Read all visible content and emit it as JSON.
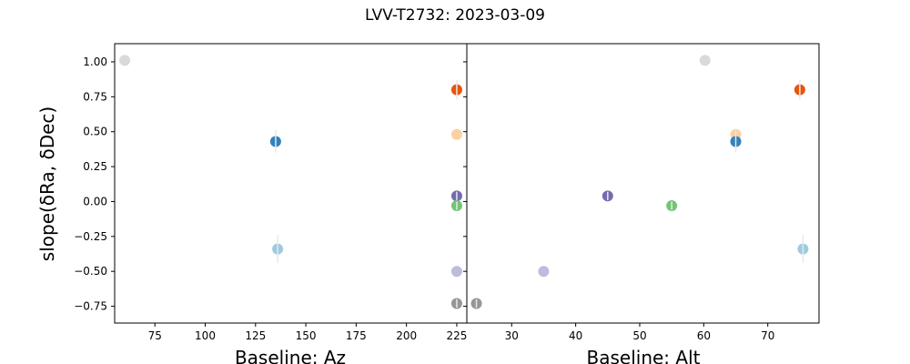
{
  "chart_data": {
    "type": "scatter",
    "title": "LVV-T2732: 2023-03-09",
    "ylabel": "slope(δRa, δDec)",
    "ylim": [
      -0.87,
      1.13
    ],
    "yticks": [
      1.0,
      0.75,
      0.5,
      0.25,
      0.0,
      -0.25,
      -0.5,
      -0.75
    ],
    "ytick_labels": [
      "1.00",
      "0.75",
      "0.50",
      "0.25",
      "0.00",
      "−0.25",
      "−0.50",
      "−0.75"
    ],
    "grid": false,
    "shared_y": true,
    "panels": [
      {
        "id": "az",
        "xlabel": "Baseline: Az",
        "xlim": [
          55,
          230
        ],
        "xticks": [
          75,
          100,
          125,
          150,
          175,
          200,
          225
        ],
        "xtick_labels": [
          "75",
          "100",
          "125",
          "150",
          "175",
          "200",
          "225"
        ],
        "points": [
          {
            "x": 60,
            "y": 1.01,
            "err": 0,
            "color": "#d9d9d9"
          },
          {
            "x": 135,
            "y": 0.43,
            "err": 0.08,
            "color": "#3182bd"
          },
          {
            "x": 136,
            "y": -0.34,
            "err": 0.1,
            "color": "#9ecae1"
          },
          {
            "x": 225,
            "y": 0.8,
            "err": 0.07,
            "color": "#e6550d"
          },
          {
            "x": 225,
            "y": 0.48,
            "err": 0,
            "color": "#fdd0a2"
          },
          {
            "x": 225,
            "y": 0.04,
            "err": 0.03,
            "color": "#756bb1"
          },
          {
            "x": 225,
            "y": -0.03,
            "err": 0.03,
            "color": "#74c476"
          },
          {
            "x": 225,
            "y": -0.5,
            "err": 0,
            "color": "#bcbddc"
          },
          {
            "x": 225,
            "y": -0.73,
            "err": 0.03,
            "color": "#969696"
          }
        ]
      },
      {
        "id": "alt",
        "xlabel": "Baseline: Alt",
        "xlim": [
          23,
          78
        ],
        "xticks": [
          30,
          40,
          50,
          60,
          70
        ],
        "xtick_labels": [
          "30",
          "40",
          "50",
          "60",
          "70"
        ],
        "points": [
          {
            "x": 24.5,
            "y": -0.73,
            "err": 0.03,
            "color": "#969696"
          },
          {
            "x": 35,
            "y": -0.5,
            "err": 0,
            "color": "#bcbddc"
          },
          {
            "x": 45,
            "y": 0.04,
            "err": 0.03,
            "color": "#756bb1"
          },
          {
            "x": 55,
            "y": -0.03,
            "err": 0.03,
            "color": "#74c476"
          },
          {
            "x": 60.2,
            "y": 1.01,
            "err": 0,
            "color": "#d9d9d9"
          },
          {
            "x": 65,
            "y": 0.48,
            "err": 0,
            "color": "#fdd0a2"
          },
          {
            "x": 65,
            "y": 0.43,
            "err": 0.08,
            "color": "#3182bd"
          },
          {
            "x": 75,
            "y": 0.8,
            "err": 0.07,
            "color": "#e6550d"
          },
          {
            "x": 75.5,
            "y": -0.34,
            "err": 0.1,
            "color": "#9ecae1"
          }
        ]
      }
    ]
  }
}
